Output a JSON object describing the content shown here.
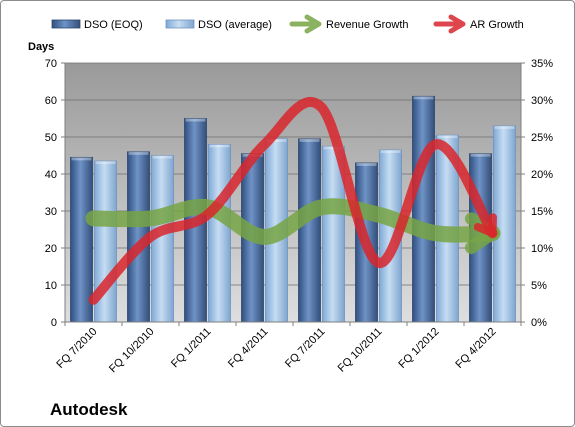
{
  "chart_data": {
    "type": "bar",
    "title": "Autodesk",
    "ylabel": "Days",
    "ylim": [
      0,
      70
    ],
    "yticks": [
      0,
      10,
      20,
      30,
      40,
      50,
      60,
      70
    ],
    "y2lim": [
      0,
      35
    ],
    "y2ticks": [
      "0%",
      "5%",
      "10%",
      "15%",
      "20%",
      "25%",
      "30%",
      "35%"
    ],
    "categories": [
      "FQ 7/2010",
      "FQ 10/2010",
      "FQ 1/2011",
      "FQ 4/2011",
      "FQ 7/2011",
      "FQ 10/2011",
      "FQ 1/2012",
      "FQ 4/2012"
    ],
    "series": [
      {
        "name": "DSO (EOQ)",
        "kind": "bar",
        "color": "#4a6fa5",
        "values": [
          44.5,
          46,
          55,
          45.5,
          49.5,
          43,
          61,
          45.5
        ]
      },
      {
        "name": "DSO (average)",
        "kind": "bar",
        "color": "#9dc3e6",
        "values": [
          43.5,
          45,
          48,
          49.5,
          47.5,
          46.5,
          50.5,
          53
        ]
      },
      {
        "name": "Revenue Growth",
        "kind": "line",
        "axis": "right",
        "color": "#77a544",
        "values": [
          14,
          14,
          15.5,
          11.5,
          15.5,
          14.5,
          12,
          12
        ]
      },
      {
        "name": "AR Growth",
        "kind": "line",
        "axis": "right",
        "color": "#d9262b",
        "values": [
          3,
          11.5,
          14.5,
          24,
          29,
          8,
          24,
          12
        ]
      }
    ],
    "legend_position": "top",
    "grid": true
  }
}
